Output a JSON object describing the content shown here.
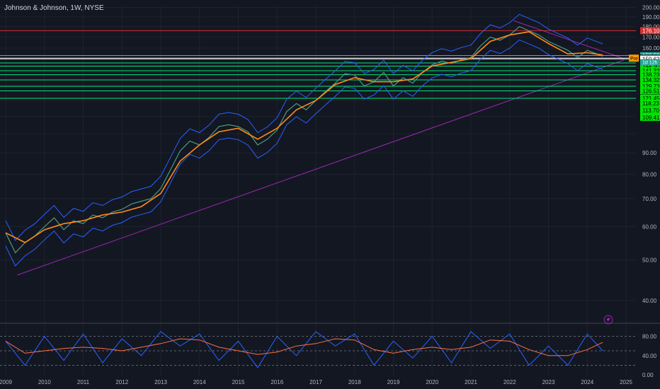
{
  "header": {
    "title": "Johnson & Johnson, 1W, NYSE"
  },
  "colors": {
    "background": "#131722",
    "grid": "#1e222d",
    "price_line": "#4a9a82",
    "ema": "#ff8c1a",
    "bollinger": "#2962ff",
    "resistance": "#d32f2f",
    "support": "#00e676",
    "trendline": "#9c27b0",
    "stoch_k": "#2962ff",
    "stoch_d": "#ff7043"
  },
  "icons": {
    "lightning": "lightning-icon"
  },
  "chart_data": [
    {
      "type": "line",
      "title": "",
      "x_ticks": [
        "2009",
        "2010",
        "2011",
        "2012",
        "2013",
        "2014",
        "2015",
        "2016",
        "2017",
        "2018",
        "2019",
        "2020",
        "2021",
        "2022",
        "2023",
        "2024",
        "2025"
      ],
      "y_ticks": [
        40.0,
        50.0,
        60.0,
        70.0,
        80.0,
        90.0,
        100.0,
        110.0,
        120.0,
        130.0,
        140.0,
        150.0,
        160.0,
        170.0,
        180.0,
        190.0,
        200.0
      ],
      "y_tick_labels": [
        "40.00",
        "50.00",
        "60.00",
        "70.00",
        "80.00",
        "90.00",
        "",
        "",
        "",
        "",
        "",
        "",
        "160.00",
        "170.00",
        "180.00",
        "190.00",
        "200.00"
      ],
      "ylim": [
        36,
        202
      ],
      "y_scale": "log",
      "x_range": [
        2009,
        2025
      ],
      "series": [
        {
          "x": [
            2009.0,
            2009.25,
            2009.5,
            2009.75,
            2010.0,
            2010.25,
            2010.5,
            2010.75,
            2011.0,
            2011.25,
            2011.5,
            2011.75,
            2012.0,
            2012.25,
            2012.5,
            2012.75,
            2013.0,
            2013.25,
            2013.5,
            2013.75,
            2014.0,
            2014.25,
            2014.5,
            2014.75,
            2015.0,
            2015.25,
            2015.5,
            2015.75,
            2016.0,
            2016.25,
            2016.5,
            2016.75,
            2017.0,
            2017.25,
            2017.5,
            2017.75,
            2018.0,
            2018.25,
            2018.5,
            2018.75,
            2019.0,
            2019.25,
            2019.5,
            2019.75,
            2020.0,
            2020.25,
            2020.5,
            2020.75,
            2021.0,
            2021.25,
            2021.5,
            2021.75,
            2022.0,
            2022.25,
            2022.5,
            2022.75,
            2023.0,
            2023.25,
            2023.5,
            2023.75,
            2024.0,
            2024.25,
            2024.4
          ],
          "values": [
            58,
            52,
            55,
            57,
            60,
            63,
            59,
            62,
            61,
            64,
            63,
            65,
            66,
            68,
            69,
            70,
            74,
            82,
            91,
            96,
            94,
            98,
            104,
            105,
            104,
            101,
            94,
            97,
            102,
            113,
            118,
            114,
            120,
            126,
            132,
            139,
            138,
            130,
            133,
            140,
            130,
            136,
            132,
            140,
            146,
            149,
            147,
            150,
            152,
            162,
            170,
            167,
            172,
            180,
            176,
            172,
            166,
            162,
            158,
            152,
            158,
            155,
            153
          ]
        },
        {
          "x": [
            2009.0,
            2009.5,
            2010.0,
            2010.5,
            2011.0,
            2011.5,
            2012.0,
            2012.5,
            2013.0,
            2013.5,
            2014.0,
            2014.5,
            2015.0,
            2015.5,
            2016.0,
            2016.5,
            2017.0,
            2017.5,
            2018.0,
            2018.5,
            2019.0,
            2019.5,
            2020.0,
            2020.5,
            2021.0,
            2021.5,
            2022.0,
            2022.5,
            2023.0,
            2023.5,
            2024.0,
            2024.4
          ],
          "values": [
            58,
            55,
            59,
            61,
            62,
            64,
            65,
            67,
            72,
            86,
            94,
            101,
            103,
            97,
            103,
            114,
            120,
            131,
            136,
            133,
            133,
            135,
            145,
            148,
            151,
            166,
            172,
            175,
            164,
            155,
            156,
            154
          ]
        }
      ],
      "horizontal_levels": [
        {
          "value": 176.1,
          "label": "176.10",
          "kind": "resistance"
        },
        {
          "value": 153.5,
          "label": "153.50",
          "kind": "last"
        },
        {
          "value": 151.41,
          "label": "151.41",
          "kind": "pre"
        },
        {
          "value": 150.62,
          "label": "150.62",
          "kind": "level"
        },
        {
          "value": 147.46,
          "label": "147.46",
          "kind": "support"
        },
        {
          "value": 144.9,
          "label": "144.90",
          "kind": "support"
        },
        {
          "value": 141.33,
          "label": "141.33",
          "kind": "support"
        },
        {
          "value": 138.23,
          "label": "138.23",
          "kind": "support"
        },
        {
          "value": 134.32,
          "label": "134.32",
          "kind": "support"
        },
        {
          "value": 129.73,
          "label": "129.73",
          "kind": "support"
        },
        {
          "value": 126.51,
          "label": "126.51",
          "kind": "support"
        },
        {
          "value": 121.45,
          "label": "121.45",
          "kind": "support"
        },
        {
          "value": 118.23,
          "label": "118.23",
          "kind": "support"
        },
        {
          "value": 113.7,
          "label": "113.70",
          "kind": "support"
        },
        {
          "value": 109.41,
          "label": "109.41",
          "kind": "support"
        }
      ],
      "badges": {
        "countdown": "1d 12h",
        "pre": "Pre"
      },
      "trendlines": [
        {
          "from": [
            2009.3,
            46
          ],
          "to": [
            2024.95,
            150
          ]
        },
        {
          "from": [
            2022.1,
            186
          ],
          "to": [
            2024.95,
            151
          ]
        }
      ]
    },
    {
      "type": "line",
      "title": "",
      "ylim": [
        0,
        100
      ],
      "y_ticks": [
        0,
        20,
        40,
        60,
        80
      ],
      "y_tick_labels": [
        "0.00",
        "",
        "40.00",
        "",
        "80.00"
      ],
      "dashed_levels": [
        80,
        50,
        20
      ],
      "series": [
        {
          "x": [
            2009,
            2009.5,
            2010,
            2010.5,
            2011,
            2011.5,
            2012,
            2012.5,
            2013,
            2013.5,
            2014,
            2014.5,
            2015,
            2015.5,
            2016,
            2016.5,
            2017,
            2017.5,
            2018,
            2018.5,
            2019,
            2019.5,
            2020,
            2020.5,
            2021,
            2021.5,
            2022,
            2022.5,
            2023,
            2023.5,
            2024,
            2024.4
          ],
          "values": [
            70,
            20,
            80,
            30,
            85,
            25,
            75,
            40,
            90,
            60,
            85,
            30,
            70,
            15,
            80,
            40,
            90,
            60,
            85,
            20,
            70,
            35,
            80,
            25,
            90,
            55,
            85,
            20,
            60,
            20,
            85,
            50
          ]
        }
      ]
    }
  ]
}
